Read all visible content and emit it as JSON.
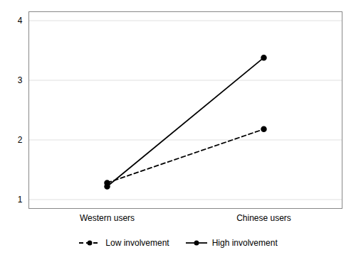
{
  "chart_data": {
    "type": "line",
    "categories": [
      "Western users",
      "Chinese users"
    ],
    "series": [
      {
        "name": "Low involvement",
        "color": "#000000",
        "values": [
          1.28,
          2.18
        ],
        "line_style": "dashed",
        "marker": "circle"
      },
      {
        "name": "High involvement",
        "color": "#000000",
        "values": [
          1.22,
          3.38
        ],
        "line_style": "solid",
        "marker": "circle"
      }
    ],
    "ylim": [
      0.85,
      4.15
    ],
    "yticks": [
      1,
      2,
      3,
      4
    ],
    "grid": true,
    "legend": "bottom"
  }
}
